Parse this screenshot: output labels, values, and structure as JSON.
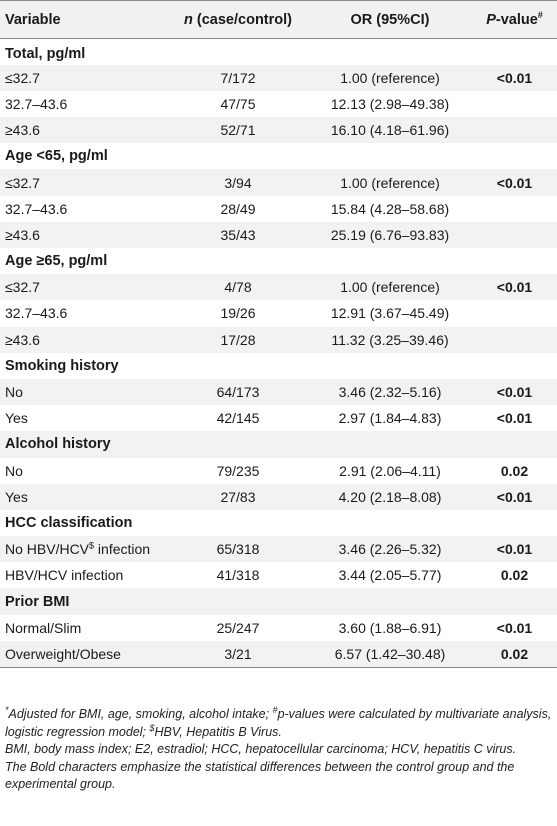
{
  "header": {
    "variable": "Variable",
    "n_prefix": "n",
    "n_suffix": " (case/control)",
    "or": "OR (95%CI)",
    "p_prefix": "P",
    "p_suffix": "-value",
    "p_sup": "#"
  },
  "groups": [
    {
      "title": "Total, pg/ml",
      "rows": [
        {
          "variable": "≤32.7",
          "n": "7/172",
          "or": "1.00 (reference)",
          "p": "<0.01"
        },
        {
          "variable": "32.7–43.6",
          "n": "47/75",
          "or": "12.13 (2.98–49.38)",
          "p": ""
        },
        {
          "variable": "≥43.6",
          "n": "52/71",
          "or": "16.10 (4.18–61.96)",
          "p": ""
        }
      ]
    },
    {
      "title": "Age  <65, pg/ml",
      "rows": [
        {
          "variable": "≤32.7",
          "n": "3/94",
          "or": "1.00 (reference)",
          "p": "<0.01"
        },
        {
          "variable": "32.7–43.6",
          "n": "28/49",
          "or": "15.84 (4.28–58.68)",
          "p": ""
        },
        {
          "variable": "≥43.6",
          "n": "35/43",
          "or": "25.19 (6.76–93.83)",
          "p": ""
        }
      ]
    },
    {
      "title": "Age ≥65, pg/ml",
      "rows": [
        {
          "variable": "≤32.7",
          "n": "4/78",
          "or": "1.00 (reference)",
          "p": "<0.01"
        },
        {
          "variable": "32.7–43.6",
          "n": "19/26",
          "or": "12.91 (3.67–45.49)",
          "p": ""
        },
        {
          "variable": "≥43.6",
          "n": "17/28",
          "or": "11.32 (3.25–39.46)",
          "p": ""
        }
      ]
    },
    {
      "title": "Smoking history",
      "rows": [
        {
          "variable": "No",
          "n": "64/173",
          "or": "3.46 (2.32–5.16)",
          "p": "<0.01"
        },
        {
          "variable": "Yes",
          "n": "42/145",
          "or": "2.97 (1.84–4.83)",
          "p": "<0.01"
        }
      ]
    },
    {
      "title": "Alcohol history",
      "rows": [
        {
          "variable": "No",
          "n": "79/235",
          "or": "2.91 (2.06–4.11)",
          "p": "0.02"
        },
        {
          "variable": "Yes",
          "n": "27/83",
          "or": "4.20 (2.18–8.08)",
          "p": "<0.01"
        }
      ]
    },
    {
      "title": "HCC classification",
      "rows": [
        {
          "variable": "No HBV/HCV",
          "variable_sup": "$",
          "variable_after": " infection",
          "n": "65/318",
          "or": "3.46 (2.26–5.32)",
          "p": "<0.01"
        },
        {
          "variable": "HBV/HCV infection",
          "n": "41/318",
          "or": "3.44 (2.05–5.77)",
          "p": "0.02"
        }
      ]
    },
    {
      "title": "Prior BMI",
      "rows": [
        {
          "variable": "Normal/Slim",
          "n": "25/247",
          "or": "3.60 (1.88–6.91)",
          "p": "<0.01"
        },
        {
          "variable": "Overweight/Obese",
          "n": "3/21",
          "or": "6.57 (1.42–30.48)",
          "p": "0.02"
        }
      ]
    }
  ],
  "footnotes": {
    "line1_a": "Adjusted for BMI, age, smoking, alcohol intake; ",
    "line1_sup_hash": "#",
    "line1_b": "p-values were calculated by multivariate analysis, logistic regression model; ",
    "line1_sup_dollar": "$",
    "line1_c": "HBV, Hepatitis B Virus.",
    "line1_sup_star": "*",
    "line2": "BMI, body mass index; E2, estradiol; HCC, hepatocellular carcinoma; HCV, hepatitis C virus.",
    "line3": "The Bold characters emphasize the statistical differences between the control group and the experimental group."
  }
}
